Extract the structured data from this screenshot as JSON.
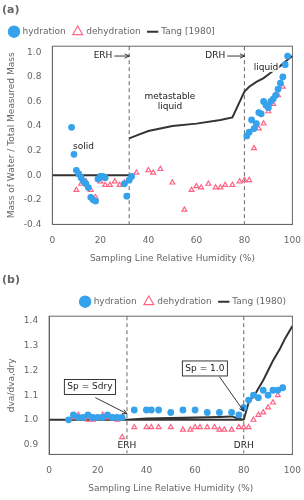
{
  "chart_data": [
    {
      "type": "scatter",
      "title": "(a)",
      "xlabel": "Sampling Line Relative Humidity (%)",
      "ylabel": "Mass of Water / Total Measured Mass",
      "xlim": [
        0,
        100
      ],
      "xticks": [
        0,
        20,
        40,
        60,
        80,
        100
      ],
      "ylim": [
        -0.4,
        1.05
      ],
      "yticks": [
        -0.4,
        -0.2,
        {
          "value": 0,
          "label": "0.0"
        },
        0.2,
        0.4,
        0.6,
        0.8,
        {
          "value": 1,
          "label": "1.0"
        }
      ],
      "grid": false,
      "legend": "upper left",
      "vlines": [
        32,
        80
      ],
      "series": [
        {
          "name": "hydration",
          "type": "scatter",
          "marker": "circle",
          "color": "#36a2eb",
          "x": [
            8,
            9,
            10,
            11,
            12,
            13,
            14,
            15,
            16,
            17,
            18,
            19,
            20,
            21,
            22,
            30,
            31,
            32,
            33,
            81,
            82,
            83,
            84,
            85,
            86,
            87,
            88,
            89,
            90,
            91,
            92,
            93,
            94,
            95,
            96,
            97,
            98
          ],
          "values": [
            0.39,
            0.17,
            0.04,
            0.01,
            -0.02,
            -0.05,
            -0.07,
            -0.1,
            -0.18,
            -0.2,
            -0.21,
            -0.03,
            -0.01,
            -0.01,
            -0.02,
            -0.07,
            -0.17,
            -0.04,
            -0.01,
            0.32,
            0.35,
            0.45,
            0.38,
            0.42,
            0.51,
            0.5,
            0.6,
            0.57,
            0.55,
            0.6,
            0.62,
            0.65,
            0.7,
            0.75,
            0.8,
            0.9,
            0.97
          ]
        },
        {
          "name": "dehydration",
          "type": "scatter",
          "marker": "open-triangle",
          "color": "#ff6384",
          "x": [
            10,
            12,
            14,
            16,
            18,
            20,
            22,
            24,
            26,
            28,
            30,
            35,
            40,
            42,
            45,
            50,
            55,
            58,
            60,
            62,
            65,
            68,
            70,
            72,
            75,
            78,
            80,
            82,
            84,
            86,
            88,
            90,
            92,
            94,
            96
          ],
          "values": [
            -0.12,
            -0.07,
            -0.05,
            -0.12,
            -0.18,
            -0.05,
            -0.08,
            -0.08,
            -0.05,
            -0.08,
            -0.06,
            0.02,
            0.04,
            0.02,
            0.05,
            -0.06,
            -0.28,
            -0.12,
            -0.09,
            -0.1,
            -0.07,
            -0.1,
            -0.1,
            -0.08,
            -0.08,
            -0.05,
            -0.04,
            -0.04,
            0.22,
            0.38,
            0.42,
            0.52,
            0.58,
            0.65,
            0.72
          ]
        },
        {
          "name": "Tang [1980]",
          "type": "line",
          "line_style": "solid",
          "color": "#333333",
          "x": [
            0,
            32,
            null,
            32,
            36,
            40,
            50,
            60,
            70,
            75,
            80,
            null,
            80,
            82,
            85,
            88,
            90,
            92,
            95,
            98,
            100
          ],
          "values": [
            0.0,
            0.0,
            null,
            0.3,
            0.33,
            0.36,
            0.4,
            0.42,
            0.45,
            0.47,
            0.68,
            null,
            0.68,
            0.72,
            0.76,
            0.79,
            0.82,
            0.85,
            0.89,
            0.94,
            0.97
          ]
        }
      ],
      "annotations": [
        {
          "text": "ERH",
          "x": 25,
          "y": 0.97,
          "arrow_to": [
            32,
            0.97
          ]
        },
        {
          "text": "DRH",
          "x": 72,
          "y": 0.97,
          "arrow_to": [
            80,
            0.97
          ]
        },
        {
          "text": "liquid",
          "x": 89,
          "y": 0.84
        },
        {
          "text": "metastable\nliquid",
          "x": 49,
          "y": 0.52
        },
        {
          "text": "solid",
          "x": 13,
          "y": 0.2
        }
      ]
    },
    {
      "type": "scatter",
      "title": "(b)",
      "xlabel": "Sampling Line Relative Humidity (%)",
      "ylabel": "dva/dva,dry",
      "xlim": [
        0,
        100
      ],
      "xticks": [
        0,
        20,
        40,
        60,
        80,
        100
      ],
      "ylim": [
        0.86,
        1.42
      ],
      "yticks": [
        0.9,
        {
          "value": 1,
          "label": "1.0"
        },
        1.1,
        1.2,
        1.3,
        1.4
      ],
      "grid": false,
      "legend": "upper right",
      "vlines": [
        32,
        80
      ],
      "series": [
        {
          "name": "hydration",
          "type": "scatter",
          "marker": "circle",
          "color": "#36a2eb",
          "x": [
            8,
            10,
            12,
            14,
            16,
            18,
            20,
            22,
            24,
            26,
            28,
            30,
            35,
            40,
            42,
            45,
            50,
            55,
            60,
            65,
            70,
            75,
            78,
            80,
            82,
            84,
            86,
            88,
            90,
            92,
            94,
            96
          ],
          "values": [
            1.0,
            1.02,
            1.01,
            1.01,
            1.02,
            1.01,
            1.01,
            1.01,
            1.02,
            1.01,
            1.01,
            1.01,
            1.04,
            1.04,
            1.04,
            1.04,
            1.03,
            1.04,
            1.04,
            1.03,
            1.03,
            1.03,
            1.02,
            1.05,
            1.08,
            1.1,
            1.09,
            1.12,
            1.1,
            1.12,
            1.12,
            1.13
          ]
        },
        {
          "name": "dehydration",
          "type": "scatter",
          "marker": "open-triangle",
          "color": "#ff6384",
          "x": [
            10,
            12,
            14,
            16,
            18,
            20,
            22,
            24,
            26,
            28,
            30,
            35,
            40,
            42,
            45,
            50,
            55,
            58,
            60,
            62,
            65,
            68,
            70,
            72,
            75,
            78,
            80,
            82,
            84,
            86,
            88,
            90,
            92,
            94,
            96
          ],
          "values": [
            1.01,
            1.02,
            1.01,
            1.0,
            1.0,
            1.01,
            1.02,
            1.01,
            1.01,
            1.0,
            0.93,
            0.97,
            0.97,
            0.97,
            0.97,
            0.97,
            0.96,
            0.96,
            0.97,
            0.97,
            0.97,
            0.97,
            0.96,
            0.96,
            0.96,
            0.97,
            0.97,
            0.97,
            1.0,
            1.02,
            1.03,
            1.05,
            1.07,
            1.1,
            1.13
          ]
        },
        {
          "name": "Tang (1980)",
          "type": "line",
          "line_style": "solid",
          "color": "#333333",
          "x": [
            0,
            32,
            32,
            80,
            null,
            32,
            40,
            50,
            60,
            70,
            75,
            80,
            null,
            80,
            82,
            85,
            88,
            90,
            92,
            95,
            97,
            100
          ],
          "values": [
            1.0,
            1.0,
            1.0,
            1.0,
            null,
            1.0,
            1.005,
            1.008,
            1.01,
            1.012,
            1.014,
            1.0,
            null,
            1.0,
            1.07,
            1.11,
            1.16,
            1.2,
            1.24,
            1.29,
            1.33,
            1.38
          ]
        }
      ],
      "annotations": [
        {
          "text": "ERH",
          "x": 32,
          "y": 0.876
        },
        {
          "text": "DRH",
          "x": 80,
          "y": 0.876
        },
        {
          "text": "Sp = Sdry",
          "x": 7.5,
          "y": 1.115,
          "arrow": {
            "from": [
              19,
              1.09
            ],
            "to": [
              32,
              1.025
            ]
          }
        },
        {
          "text": "Sp = 1.0",
          "x": 56,
          "y": 1.19,
          "arrow": {
            "from": [
              70,
              1.175
            ],
            "to": [
              80,
              1.035
            ]
          }
        }
      ]
    }
  ]
}
